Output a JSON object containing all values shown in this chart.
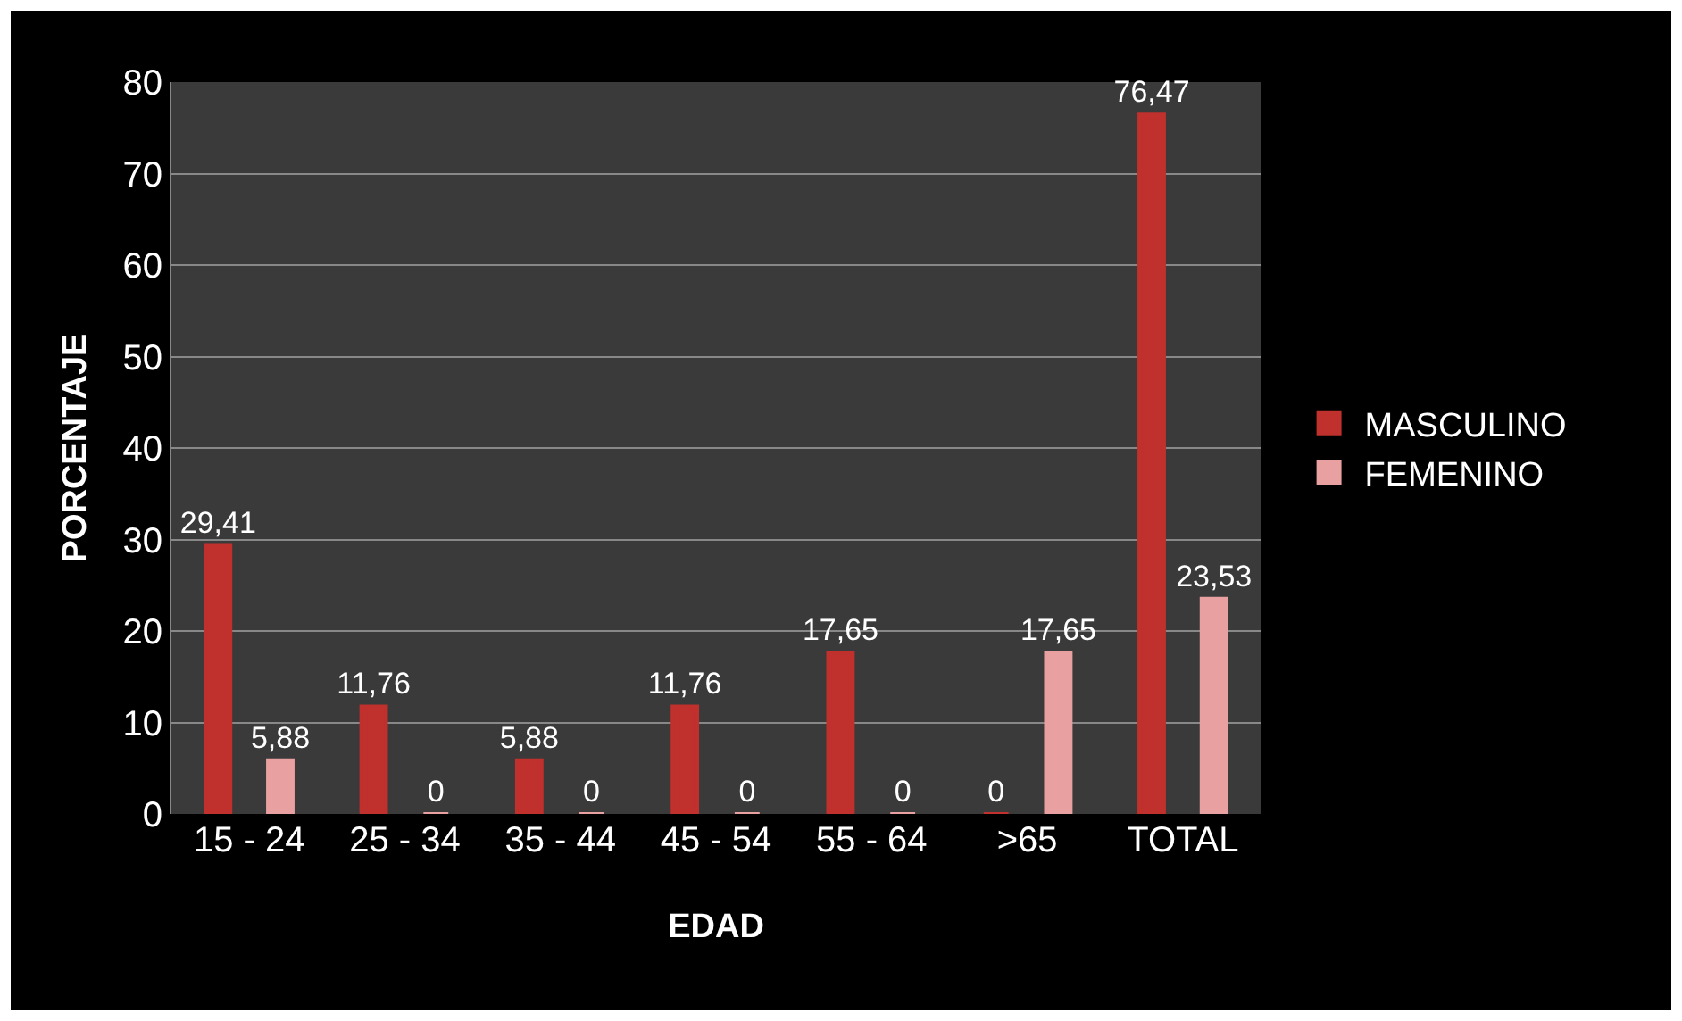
{
  "chart_data": {
    "type": "bar",
    "xlabel": "EDAD",
    "ylabel": "PORCENTAJE",
    "categories": [
      "15 - 24",
      "25 - 34",
      "35 - 44",
      "45 - 54",
      "55 - 64",
      ">65",
      "TOTAL"
    ],
    "series": [
      {
        "name": "MASCULINO",
        "color": "#c0302c",
        "values": [
          29.41,
          11.76,
          5.88,
          11.76,
          17.65,
          0,
          76.47
        ],
        "value_labels": [
          "29,41",
          "11,76",
          "5,88",
          "11,76",
          "17,65",
          "0",
          "76,47"
        ]
      },
      {
        "name": "FEMENINO",
        "color": "#e8a0a0",
        "values": [
          5.88,
          0,
          0,
          0,
          0,
          17.65,
          23.53
        ],
        "value_labels": [
          "5,88",
          "0",
          "0",
          "0",
          "0",
          "17,65",
          "23,53"
        ]
      }
    ],
    "ylim": [
      0,
      80
    ],
    "yticks": [
      0,
      10,
      20,
      30,
      40,
      50,
      60,
      70,
      80
    ],
    "grid": "y",
    "legend": "right"
  }
}
